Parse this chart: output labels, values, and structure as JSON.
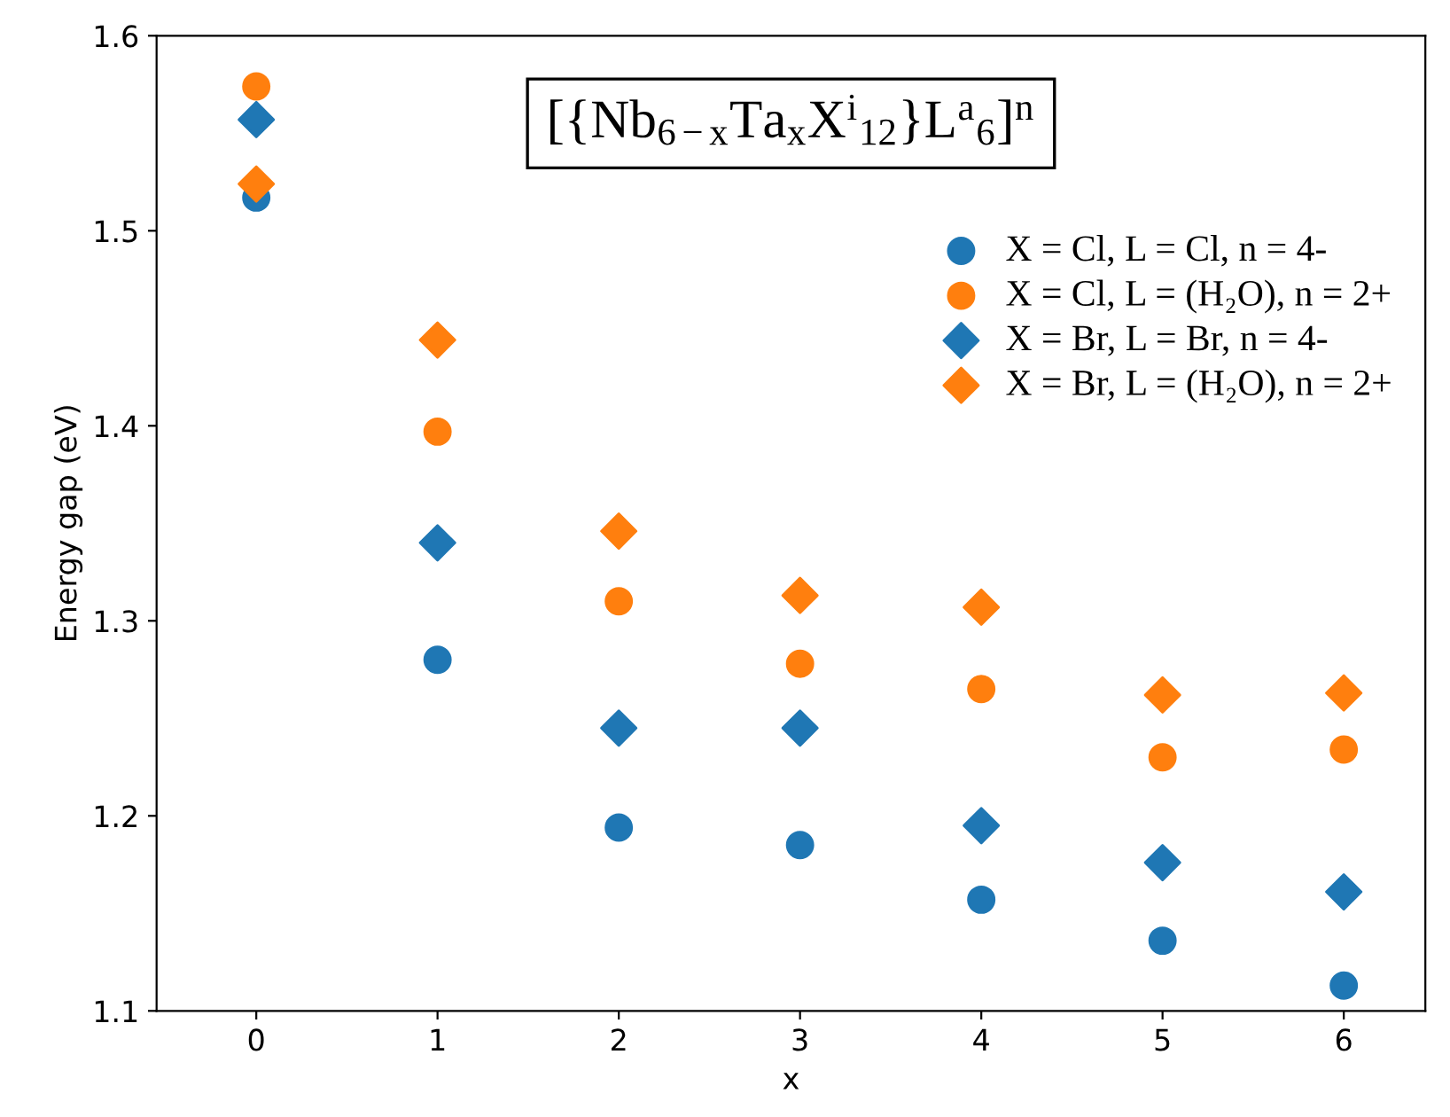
{
  "chart_data": {
    "type": "scatter",
    "title": "[{Nb$_{6−x}$Ta$_{x}$X$^{i}$$_{12}$}L$^{a}$$_{6}$]$^{n}$",
    "xlabel": "x",
    "ylabel": "Energy gap (eV)",
    "x": [
      0,
      1,
      2,
      3,
      4,
      5,
      6
    ],
    "series": [
      {
        "name": "X = Cl, L = Cl, n = 4-",
        "color": "#1f77b4",
        "marker": "circle",
        "values": [
          1.517,
          1.28,
          1.194,
          1.185,
          1.157,
          1.136,
          1.113
        ]
      },
      {
        "name": "X = Cl, L = (H₂O), n = 2+",
        "color": "#ff7f0e",
        "marker": "circle",
        "values": [
          1.574,
          1.397,
          1.31,
          1.278,
          1.265,
          1.23,
          1.234
        ]
      },
      {
        "name": "X = Br, L = Br, n = 4-",
        "color": "#1f77b4",
        "marker": "diamond",
        "values": [
          1.557,
          1.34,
          1.245,
          1.245,
          1.195,
          1.176,
          1.161
        ]
      },
      {
        "name": "X = Br, L = (H₂O), n = 2+",
        "color": "#ff7f0e",
        "marker": "diamond",
        "values": [
          1.524,
          1.444,
          1.346,
          1.313,
          1.307,
          1.262,
          1.263
        ]
      }
    ],
    "xlim": [
      -0.55,
      6.45
    ],
    "ylim": [
      1.1,
      1.6
    ],
    "xticks": [
      0,
      1,
      2,
      3,
      4,
      5,
      6
    ],
    "yticks": [
      1.1,
      1.2,
      1.3,
      1.4,
      1.5,
      1.6
    ],
    "legend": "top right",
    "grid": false
  }
}
